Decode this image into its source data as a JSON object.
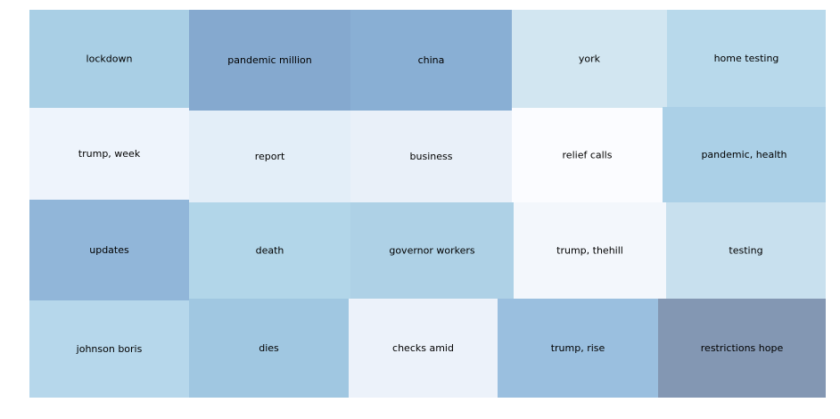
{
  "chart_data": {
    "type": "treemap",
    "grid": false,
    "legend": "none",
    "cells": [
      {
        "label": "lockdown",
        "color": "#a9cfe5"
      },
      {
        "label": "pandemic million",
        "color": "#85a9cf"
      },
      {
        "label": "china",
        "color": "#89afd4"
      },
      {
        "label": "york",
        "color": "#d2e6f1"
      },
      {
        "label": "home testing",
        "color": "#b8d9eb"
      },
      {
        "label": "trump, week",
        "color": "#eef4fc"
      },
      {
        "label": "report",
        "color": "#e3eef8"
      },
      {
        "label": "business",
        "color": "#e9f0f9"
      },
      {
        "label": "relief calls",
        "color": "#fbfcff"
      },
      {
        "label": "pandemic, health",
        "color": "#abd0e7"
      },
      {
        "label": "updates",
        "color": "#91b6d9"
      },
      {
        "label": "death",
        "color": "#b2d6e9"
      },
      {
        "label": "governor workers",
        "color": "#aed1e6"
      },
      {
        "label": "trump, thehill",
        "color": "#f3f7fc"
      },
      {
        "label": "testing",
        "color": "#c8e0ee"
      },
      {
        "label": "johnson boris",
        "color": "#b6d7eb"
      },
      {
        "label": "dies",
        "color": "#a0c7e1"
      },
      {
        "label": "checks amid",
        "color": "#ecf2fa"
      },
      {
        "label": "trump, rise",
        "color": "#9abfdf"
      },
      {
        "label": "restrictions hope",
        "color": "#8397b3"
      }
    ]
  }
}
